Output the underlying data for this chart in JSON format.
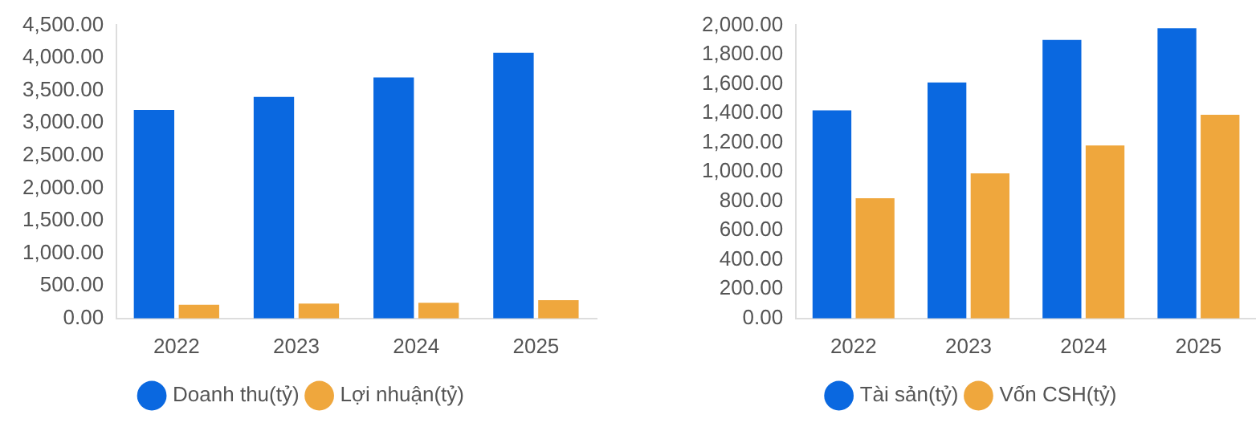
{
  "chart_data": [
    {
      "type": "bar",
      "categories": [
        "2022",
        "2023",
        "2024",
        "2025"
      ],
      "series": [
        {
          "name": "Doanh thu(tỷ)",
          "color": "#0a68e0",
          "values": [
            3200,
            3400,
            3700,
            4080
          ]
        },
        {
          "name": "Lợi nhuận(tỷ)",
          "color": "#efa73d",
          "values": [
            210,
            230,
            240,
            280
          ]
        }
      ],
      "ylim": [
        0,
        4500
      ],
      "yticks": [
        {
          "value": 0,
          "label": "0.00"
        },
        {
          "value": 500,
          "label": "500.00"
        },
        {
          "value": 1000,
          "label": "1,000.00"
        },
        {
          "value": 1500,
          "label": "1,500.00"
        },
        {
          "value": 2000,
          "label": "2,000.00"
        },
        {
          "value": 2500,
          "label": "2,500.00"
        },
        {
          "value": 3000,
          "label": "3,000.00"
        },
        {
          "value": 3500,
          "label": "3,500.00"
        },
        {
          "value": 4000,
          "label": "4,000.00"
        },
        {
          "value": 4500,
          "label": "4,500.00"
        }
      ],
      "grid": false,
      "legend": "bottom"
    },
    {
      "type": "bar",
      "categories": [
        "2022",
        "2023",
        "2024",
        "2025"
      ],
      "series": [
        {
          "name": "Tài sản(tỷ)",
          "color": "#0a68e0",
          "values": [
            1420,
            1610,
            1900,
            1980
          ]
        },
        {
          "name": "Vốn CSH(tỷ)",
          "color": "#efa73d",
          "values": [
            820,
            990,
            1180,
            1390
          ]
        }
      ],
      "ylim": [
        0,
        2000
      ],
      "yticks": [
        {
          "value": 0,
          "label": "0.00"
        },
        {
          "value": 200,
          "label": "200.00"
        },
        {
          "value": 400,
          "label": "400.00"
        },
        {
          "value": 600,
          "label": "600.00"
        },
        {
          "value": 800,
          "label": "800.00"
        },
        {
          "value": 1000,
          "label": "1,000.00"
        },
        {
          "value": 1200,
          "label": "1,200.00"
        },
        {
          "value": 1400,
          "label": "1,400.00"
        },
        {
          "value": 1600,
          "label": "1,600.00"
        },
        {
          "value": 1800,
          "label": "1,800.00"
        },
        {
          "value": 2000,
          "label": "2,000.00"
        }
      ],
      "grid": false,
      "legend": "bottom"
    }
  ]
}
